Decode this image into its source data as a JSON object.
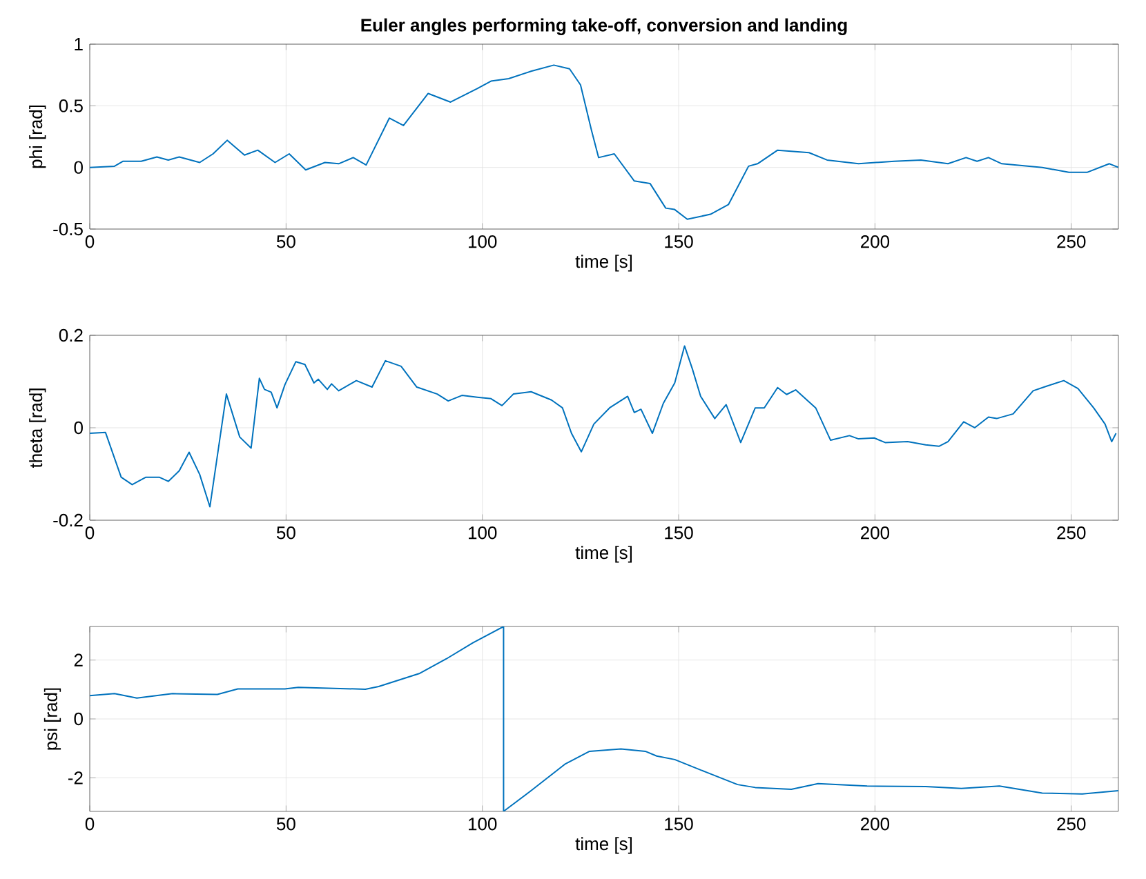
{
  "chart_data": [
    {
      "type": "line",
      "title": "Euler angles performing take-off, conversion and landing",
      "xlabel": "time [s]",
      "ylabel": "phi [rad]",
      "color": "#0072bd",
      "grid": true,
      "xlim": [
        0,
        262
      ],
      "xticks": [
        0,
        50,
        100,
        150,
        200,
        250
      ],
      "ylim": [
        -0.5,
        1
      ],
      "yticks": [
        -0.5,
        0,
        0.5,
        1
      ],
      "x": [
        0,
        6.3,
        8.5,
        13.1,
        17.1,
        20,
        22.8,
        28,
        31.4,
        35,
        39.4,
        42.8,
        47.2,
        50.8,
        55,
        59.9,
        63.4,
        67.1,
        70.4,
        76.3,
        79.9,
        86.2,
        91.9,
        98.7,
        102.2,
        106.7,
        112.4,
        118.2,
        122.2,
        125,
        127.8,
        129.6,
        133.6,
        138.7,
        142.7,
        146.7,
        148.9,
        152.2,
        158.1,
        162.7,
        167.8,
        170.1,
        175.2,
        183.2,
        187.8,
        195.8,
        204.9,
        211.7,
        218.6,
        223.2,
        226,
        228.9,
        232.3,
        242.6,
        249.4,
        254,
        259.7,
        262
      ],
      "values": [
        0,
        0.01,
        0.05,
        0.05,
        0.085,
        0.06,
        0.085,
        0.04,
        0.11,
        0.22,
        0.1,
        0.14,
        0.04,
        0.11,
        -0.02,
        0.04,
        0.03,
        0.08,
        0.02,
        0.4,
        0.34,
        0.6,
        0.53,
        0.64,
        0.7,
        0.72,
        0.78,
        0.83,
        0.8,
        0.67,
        0.3,
        0.08,
        0.11,
        -0.11,
        -0.13,
        -0.33,
        -0.34,
        -0.42,
        -0.38,
        -0.3,
        0.01,
        0.03,
        0.14,
        0.12,
        0.06,
        0.03,
        0.05,
        0.06,
        0.03,
        0.08,
        0.05,
        0.08,
        0.03,
        0,
        -0.04,
        -0.04,
        0.03,
        0
      ]
    },
    {
      "type": "line",
      "xlabel": "time [s]",
      "ylabel": "theta [rad]",
      "color": "#0072bd",
      "grid": true,
      "xlim": [
        0,
        262
      ],
      "xticks": [
        0,
        50,
        100,
        150,
        200,
        250
      ],
      "ylim": [
        -0.2,
        0.2
      ],
      "yticks": [
        -0.2,
        0,
        0.2
      ],
      "x": [
        0,
        4,
        8,
        10.8,
        14.3,
        17.7,
        20,
        22.8,
        25.3,
        28,
        30.6,
        34.8,
        38.2,
        41.1,
        43.2,
        44.5,
        46.2,
        47.7,
        49.7,
        52.5,
        54.8,
        57.1,
        58.2,
        60.5,
        61.6,
        63.4,
        67.9,
        71.9,
        75.3,
        79.3,
        83.3,
        88.5,
        91.3,
        94.8,
        98.7,
        102.2,
        105,
        107.9,
        112.4,
        117.6,
        120.4,
        122.7,
        125.2,
        128.4,
        132.4,
        137,
        138.7,
        140.4,
        143.3,
        146.1,
        149,
        151.5,
        153.5,
        155.6,
        159.2,
        162.1,
        165.8,
        169.5,
        171.8,
        175.2,
        177.5,
        179.8,
        184.9,
        188.7,
        193.5,
        195.8,
        199.8,
        202.6,
        208.3,
        212.9,
        216.3,
        218.6,
        222.6,
        225.4,
        228.9,
        231,
        235.2,
        240.3,
        243.7,
        248.1,
        251.7,
        255.7,
        258.6,
        260.3,
        261.4
      ],
      "values": [
        -0.012,
        -0.01,
        -0.107,
        -0.123,
        -0.107,
        -0.107,
        -0.116,
        -0.093,
        -0.053,
        -0.101,
        -0.171,
        0.073,
        -0.02,
        -0.044,
        0.107,
        0.083,
        0.077,
        0.043,
        0.093,
        0.143,
        0.137,
        0.097,
        0.105,
        0.083,
        0.095,
        0.08,
        0.102,
        0.088,
        0.145,
        0.133,
        0.088,
        0.073,
        0.058,
        0.07,
        0.066,
        0.063,
        0.048,
        0.073,
        0.078,
        0.06,
        0.043,
        -0.012,
        -0.052,
        0.008,
        0.043,
        0.068,
        0.033,
        0.04,
        -0.012,
        0.053,
        0.097,
        0.177,
        0.127,
        0.068,
        0.02,
        0.05,
        -0.032,
        0.043,
        0.043,
        0.087,
        0.072,
        0.082,
        0.043,
        -0.027,
        -0.017,
        -0.024,
        -0.022,
        -0.032,
        -0.03,
        -0.037,
        -0.04,
        -0.03,
        0.013,
        0,
        0.023,
        0.02,
        0.03,
        0.08,
        0.09,
        0.102,
        0.085,
        0.043,
        0.008,
        -0.03,
        -0.012
      ]
    },
    {
      "type": "line",
      "xlabel": "time [s]",
      "ylabel": "psi [rad]",
      "color": "#0072bd",
      "grid": true,
      "xlim": [
        0,
        262
      ],
      "xticks": [
        0,
        50,
        100,
        150,
        200,
        250
      ],
      "ylim": [
        -3.1416,
        3.1416
      ],
      "yticks": [
        -2,
        0,
        2
      ],
      "x": [
        0,
        6.3,
        12,
        21.1,
        32.5,
        37.7,
        49.7,
        53.1,
        70.2,
        73.6,
        83.9,
        90.8,
        97.6,
        105.4,
        105.4,
        112.4,
        121,
        127.3,
        135.3,
        141.5,
        144.4,
        149,
        157,
        165,
        169.5,
        178.7,
        185.5,
        198,
        212.9,
        222,
        231.7,
        242.6,
        252.8,
        262
      ],
      "values": [
        0.79,
        0.86,
        0.71,
        0.86,
        0.83,
        1.02,
        1.02,
        1.07,
        1.01,
        1.1,
        1.54,
        2.04,
        2.59,
        3.14,
        -3.14,
        -2.44,
        -1.54,
        -1.1,
        -1.02,
        -1.1,
        -1.26,
        -1.38,
        -1.81,
        -2.23,
        -2.33,
        -2.39,
        -2.2,
        -2.28,
        -2.3,
        -2.36,
        -2.28,
        -2.52,
        -2.55,
        -2.44
      ]
    }
  ]
}
